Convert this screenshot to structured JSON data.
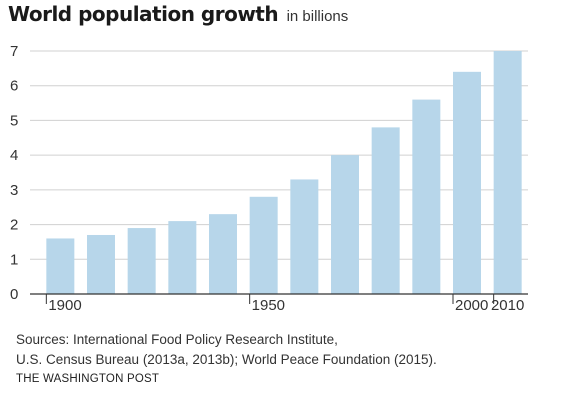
{
  "chart_data": {
    "type": "bar",
    "title": "World population growth",
    "subtitle": "in billions",
    "x": [
      1900,
      1910,
      1920,
      1930,
      1940,
      1950,
      1960,
      1970,
      1980,
      1990,
      2000,
      2010
    ],
    "values": [
      1.6,
      1.7,
      1.9,
      2.1,
      2.3,
      2.8,
      3.3,
      4.0,
      4.8,
      5.6,
      6.4,
      7.0
    ],
    "x_tick_labels": [
      "1900",
      "1950",
      "2000",
      "2010"
    ],
    "x_tick_values": [
      1900,
      1950,
      2000,
      2010
    ],
    "y_ticks": [
      0,
      1,
      2,
      3,
      4,
      5,
      6,
      7
    ],
    "ylim": [
      0,
      7
    ],
    "bar_color": "#b7d6ea",
    "grid": true
  },
  "source_lines": [
    "Sources: International Food Policy Research Institute,",
    "U.S. Census Bureau (2013a, 2013b); World Peace Foundation (2015)."
  ],
  "credit": "THE WASHINGTON POST"
}
